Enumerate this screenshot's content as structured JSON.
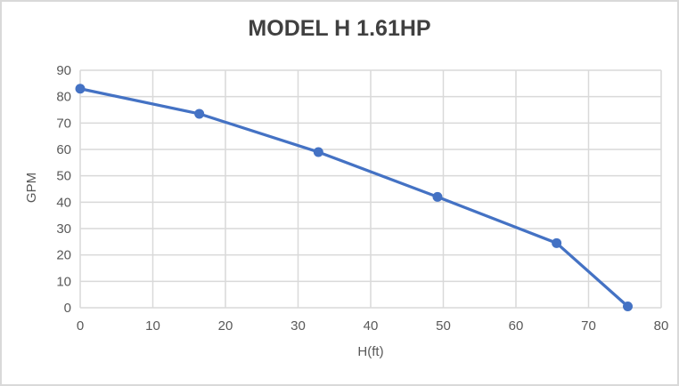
{
  "chart": {
    "title": "MODEL H 1.61HP",
    "x_axis": {
      "label": "H(ft)"
    },
    "y_axis": {
      "label": "GPM"
    }
  },
  "chart_data": {
    "type": "line",
    "title": "MODEL H 1.61HP",
    "xlabel": "H(ft)",
    "ylabel": "GPM",
    "xlim": [
      0,
      80
    ],
    "ylim": [
      0,
      90
    ],
    "x_ticks": [
      0,
      10,
      20,
      30,
      40,
      50,
      60,
      70,
      80
    ],
    "y_ticks": [
      0,
      10,
      20,
      30,
      40,
      50,
      60,
      70,
      80,
      90
    ],
    "grid": true,
    "legend": false,
    "series": [
      {
        "name": "MODEL H 1.61HP",
        "marker": "circle",
        "color": "#4472C4",
        "points": [
          {
            "x": 0,
            "y": 83
          },
          {
            "x": 16.4,
            "y": 73.5
          },
          {
            "x": 32.8,
            "y": 59
          },
          {
            "x": 49.2,
            "y": 42
          },
          {
            "x": 65.6,
            "y": 24.5
          },
          {
            "x": 75.4,
            "y": 0.5
          }
        ]
      }
    ]
  },
  "colors": {
    "series_line": "#4472C4",
    "gridline": "#D9D9D9",
    "axis_line": "#D9D9D9",
    "tick_label": "#595959",
    "axis_title": "#595959",
    "chart_title": "#404040",
    "frame_border": "#D9D9D9",
    "background": "#FFFFFF"
  }
}
